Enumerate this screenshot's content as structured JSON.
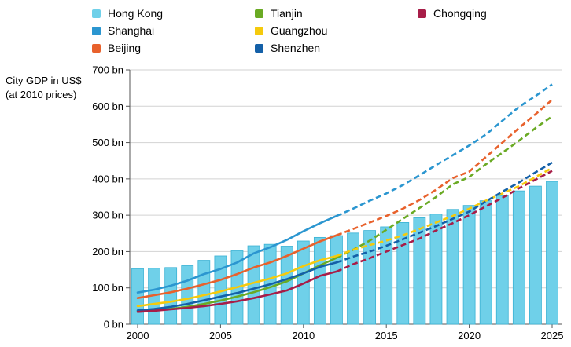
{
  "chart_data": {
    "type": "bar+line",
    "ylabel_line1": "City GDP in US$",
    "ylabel_line2": "(at 2010 prices)",
    "ylim": [
      0,
      700
    ],
    "y_ticks": [
      "0 bn",
      "100 bn",
      "200 bn",
      "300 bn",
      "400 bn",
      "500 bn",
      "600 bn",
      "700 bn"
    ],
    "y_tick_values": [
      0,
      100,
      200,
      300,
      400,
      500,
      600,
      700
    ],
    "x_ticks": [
      "2000",
      "2005",
      "2010",
      "2015",
      "2020",
      "2025"
    ],
    "x_tick_values": [
      2000,
      2005,
      2010,
      2015,
      2020,
      2025
    ],
    "projection_start": 2012,
    "bars": {
      "name": "Hong Kong",
      "color": "#6fd0e9",
      "edge_color": "#3ab2d4",
      "years": [
        2000,
        2001,
        2002,
        2003,
        2004,
        2005,
        2006,
        2007,
        2008,
        2009,
        2010,
        2011,
        2012,
        2013,
        2014,
        2015,
        2016,
        2017,
        2018,
        2019,
        2020,
        2021,
        2022,
        2023,
        2024,
        2025
      ],
      "values": [
        153,
        154,
        156,
        161,
        176,
        188,
        202,
        216,
        220,
        215,
        229,
        239,
        244,
        251,
        258,
        268,
        280,
        293,
        303,
        316,
        327,
        340,
        354,
        367,
        380,
        393
      ]
    },
    "series": [
      {
        "name": "Shanghai",
        "color": "#2b96d0",
        "years": [
          2000,
          2001,
          2002,
          2003,
          2004,
          2005,
          2006,
          2007,
          2008,
          2009,
          2010,
          2011,
          2012,
          2013,
          2014,
          2015,
          2016,
          2017,
          2018,
          2019,
          2020,
          2021,
          2022,
          2023,
          2024,
          2025
        ],
        "values": [
          87,
          95,
          106,
          120,
          138,
          152,
          170,
          195,
          212,
          232,
          256,
          278,
          298,
          318,
          340,
          360,
          383,
          410,
          438,
          465,
          492,
          522,
          560,
          598,
          628,
          660
        ]
      },
      {
        "name": "Beijing",
        "color": "#e8612c",
        "years": [
          2000,
          2001,
          2002,
          2003,
          2004,
          2005,
          2006,
          2007,
          2008,
          2009,
          2010,
          2011,
          2012,
          2013,
          2014,
          2015,
          2016,
          2017,
          2018,
          2019,
          2020,
          2021,
          2022,
          2023,
          2024,
          2025
        ],
        "values": [
          72,
          80,
          88,
          98,
          110,
          122,
          138,
          156,
          170,
          188,
          208,
          228,
          245,
          262,
          280,
          298,
          318,
          342,
          370,
          402,
          420,
          460,
          500,
          540,
          578,
          618
        ]
      },
      {
        "name": "Tianjin",
        "color": "#6aaa24",
        "years": [
          2000,
          2001,
          2002,
          2003,
          2004,
          2005,
          2006,
          2007,
          2008,
          2009,
          2010,
          2011,
          2012,
          2013,
          2014,
          2015,
          2016,
          2017,
          2018,
          2019,
          2020,
          2021,
          2022,
          2023,
          2024,
          2025
        ],
        "values": [
          35,
          38,
          42,
          48,
          56,
          65,
          76,
          88,
          102,
          118,
          140,
          162,
          183,
          205,
          230,
          260,
          290,
          320,
          350,
          385,
          405,
          440,
          472,
          505,
          540,
          572
        ]
      },
      {
        "name": "Guangzhou",
        "color": "#f5ca0c",
        "years": [
          2000,
          2001,
          2002,
          2003,
          2004,
          2005,
          2006,
          2007,
          2008,
          2009,
          2010,
          2011,
          2012,
          2013,
          2014,
          2015,
          2016,
          2017,
          2018,
          2019,
          2020,
          2021,
          2022,
          2023,
          2024,
          2025
        ],
        "values": [
          50,
          56,
          62,
          70,
          80,
          90,
          102,
          114,
          126,
          140,
          160,
          176,
          188,
          205,
          218,
          230,
          245,
          262,
          280,
          298,
          318,
          340,
          360,
          380,
          405,
          430
        ]
      },
      {
        "name": "Shenzhen",
        "color": "#1460a8",
        "years": [
          2000,
          2001,
          2002,
          2003,
          2004,
          2005,
          2006,
          2007,
          2008,
          2009,
          2010,
          2011,
          2012,
          2013,
          2014,
          2015,
          2016,
          2017,
          2018,
          2019,
          2020,
          2021,
          2022,
          2023,
          2024,
          2025
        ],
        "values": [
          38,
          42,
          48,
          56,
          66,
          76,
          86,
          98,
          110,
          124,
          140,
          158,
          170,
          186,
          200,
          216,
          234,
          252,
          270,
          290,
          310,
          338,
          365,
          390,
          418,
          445
        ]
      },
      {
        "name": "Chongqing",
        "color": "#a71d48",
        "years": [
          2000,
          2001,
          2002,
          2003,
          2004,
          2005,
          2006,
          2007,
          2008,
          2009,
          2010,
          2011,
          2012,
          2013,
          2014,
          2015,
          2016,
          2017,
          2018,
          2019,
          2020,
          2021,
          2022,
          2023,
          2024,
          2025
        ],
        "values": [
          34,
          37,
          41,
          45,
          50,
          56,
          63,
          72,
          82,
          93,
          112,
          133,
          145,
          165,
          182,
          200,
          218,
          236,
          258,
          278,
          300,
          324,
          348,
          374,
          398,
          422
        ]
      }
    ],
    "legend": [
      {
        "name": "Hong Kong",
        "color": "#6fd0e9"
      },
      {
        "name": "Shanghai",
        "color": "#2b96d0"
      },
      {
        "name": "Beijing",
        "color": "#e8612c"
      },
      {
        "name": "Tianjin",
        "color": "#6aaa24"
      },
      {
        "name": "Guangzhou",
        "color": "#f5ca0c"
      },
      {
        "name": "Shenzhen",
        "color": "#1460a8"
      },
      {
        "name": "Chongqing",
        "color": "#a71d48"
      }
    ]
  }
}
